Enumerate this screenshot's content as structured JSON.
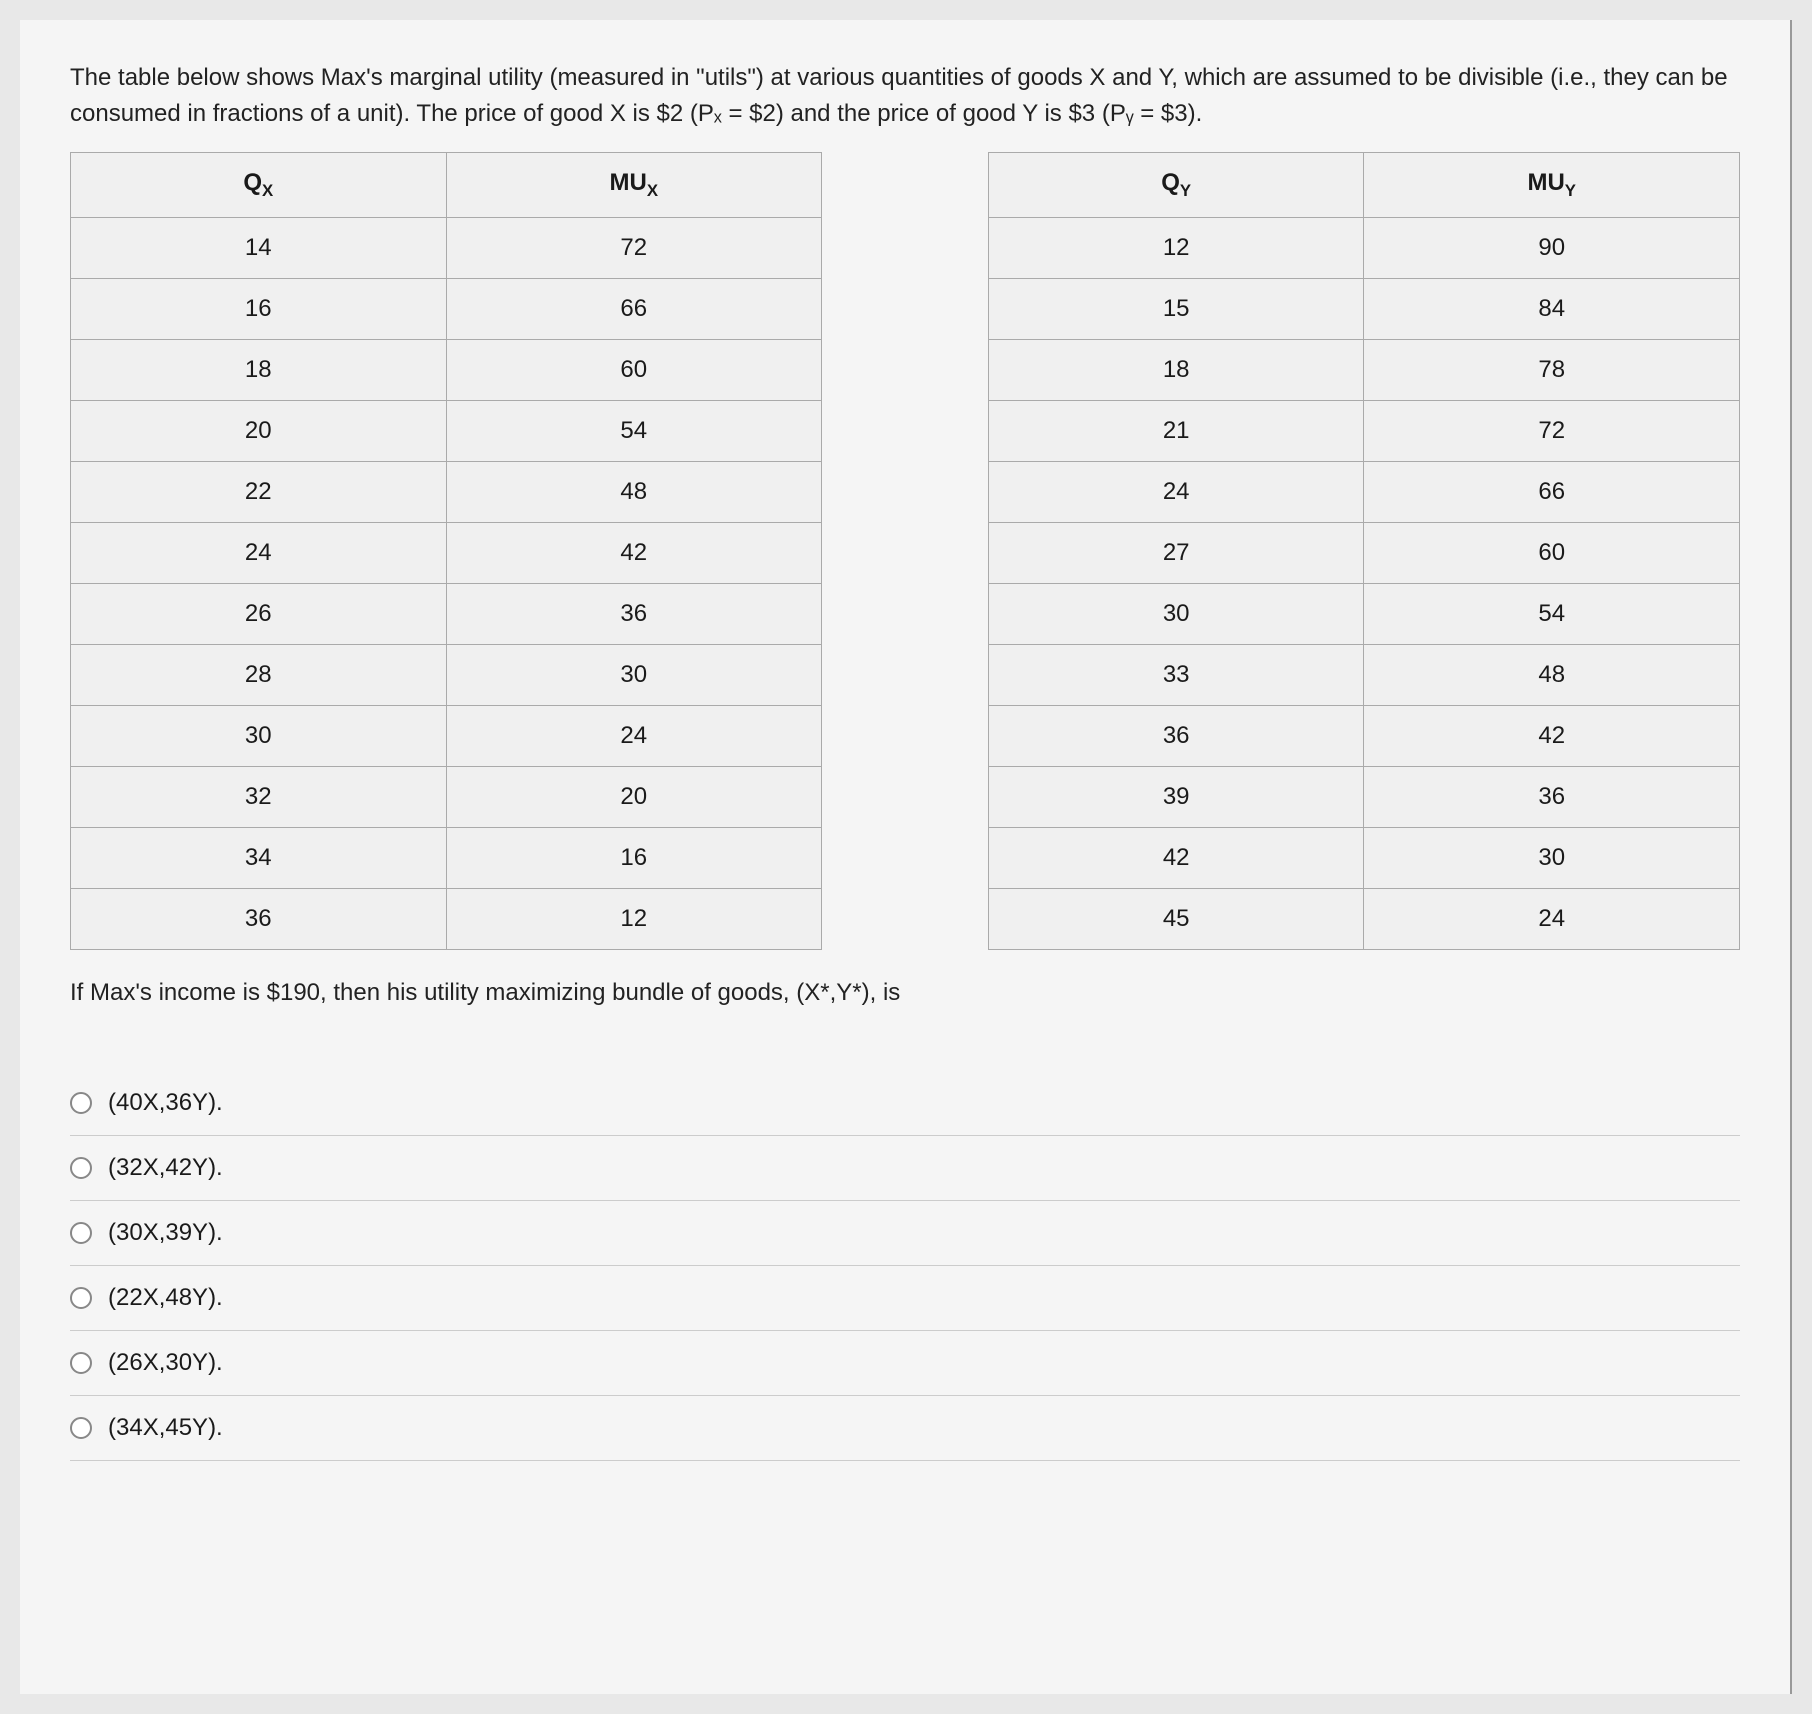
{
  "intro": "The table below shows Max's marginal utility (measured in \"utils\") at various quantities of goods X and Y, which are assumed to be divisible (i.e., they can be consumed in fractions of a unit). The price of good X is $2 (Pₓ = $2) and the price of good Y is $3 (Pᵧ = $3).",
  "table": {
    "headers": {
      "qx": "Qₓ",
      "mux": "MUₓ",
      "qy": "Qᵧ",
      "muy": "MUᵧ"
    },
    "rows": [
      {
        "qx": "14",
        "mux": "72",
        "qy": "12",
        "muy": "90"
      },
      {
        "qx": "16",
        "mux": "66",
        "qy": "15",
        "muy": "84"
      },
      {
        "qx": "18",
        "mux": "60",
        "qy": "18",
        "muy": "78"
      },
      {
        "qx": "20",
        "mux": "54",
        "qy": "21",
        "muy": "72"
      },
      {
        "qx": "22",
        "mux": "48",
        "qy": "24",
        "muy": "66"
      },
      {
        "qx": "24",
        "mux": "42",
        "qy": "27",
        "muy": "60"
      },
      {
        "qx": "26",
        "mux": "36",
        "qy": "30",
        "muy": "54"
      },
      {
        "qx": "28",
        "mux": "30",
        "qy": "33",
        "muy": "48"
      },
      {
        "qx": "30",
        "mux": "24",
        "qy": "36",
        "muy": "42"
      },
      {
        "qx": "32",
        "mux": "20",
        "qy": "39",
        "muy": "36"
      },
      {
        "qx": "34",
        "mux": "16",
        "qy": "42",
        "muy": "30"
      },
      {
        "qx": "36",
        "mux": "12",
        "qy": "45",
        "muy": "24"
      }
    ]
  },
  "question": "If Max's income is $190, then his utility maximizing bundle of goods, (X*,Y*), is",
  "options": [
    "(40X,36Y).",
    "(32X,42Y).",
    "(30X,39Y).",
    "(22X,48Y).",
    "(26X,30Y).",
    "(34X,45Y)."
  ],
  "style": {
    "background": "#f5f5f5",
    "text_color": "#1a1a1a",
    "border_color": "#aaa",
    "option_divider": "#ccc",
    "font_family": "Arial, Helvetica, sans-serif",
    "intro_fontsize": 24,
    "table_fontsize": 24,
    "option_fontsize": 24
  }
}
